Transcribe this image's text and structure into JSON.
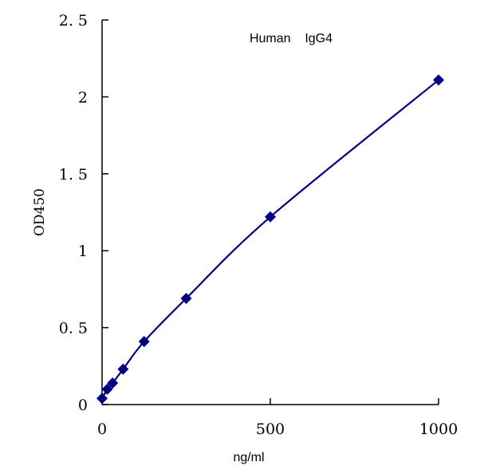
{
  "chart_data": {
    "type": "line",
    "title": "Human    IgG4",
    "xlabel": "ng/ml",
    "ylabel": "OD450",
    "xlim": [
      0,
      1000
    ],
    "ylim": [
      0,
      2.5
    ],
    "x_ticks": [
      0,
      500,
      1000
    ],
    "x_tick_labels": [
      "0",
      "500",
      "1000"
    ],
    "y_ticks": [
      0,
      0.5,
      1,
      1.5,
      2,
      2.5
    ],
    "y_tick_labels": [
      "0",
      "0. 5",
      "1",
      "1. 5",
      "2",
      "2. 5"
    ],
    "grid": false,
    "legend": "none",
    "series": [
      {
        "color": "#000080",
        "marker": "diamond",
        "x": [
          0,
          15.6,
          31.25,
          62.5,
          125,
          250,
          500,
          1000
        ],
        "y": [
          0.04,
          0.1,
          0.14,
          0.23,
          0.41,
          0.69,
          1.22,
          2.11
        ]
      }
    ]
  }
}
